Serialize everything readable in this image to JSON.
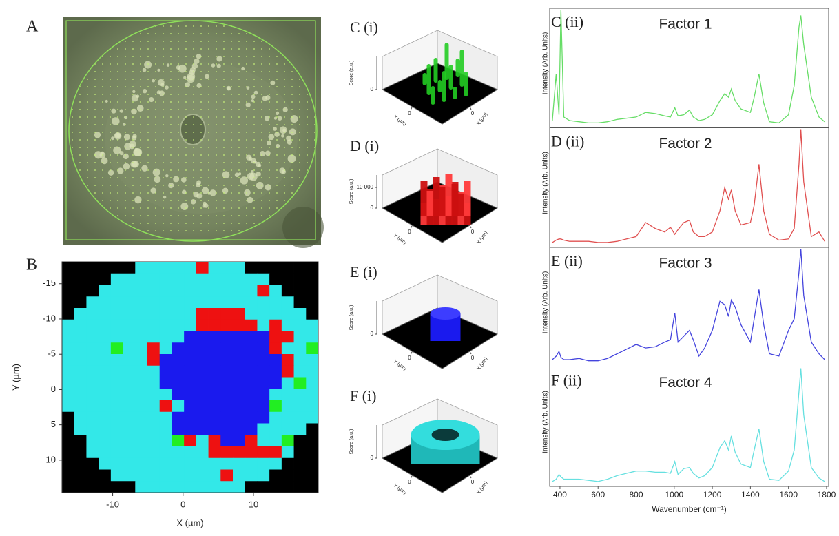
{
  "microscope": {
    "label": "A"
  },
  "surfaces": [
    {
      "label": "C (i)",
      "zlabel": "Score (a.u.)",
      "zticks": [
        0
      ],
      "ylabel": "Y (µm)",
      "yticks": [
        0
      ],
      "xlabel": "X (µm)",
      "xticks": [
        0
      ],
      "color": "#22cc22",
      "shape": "pillars"
    },
    {
      "label": "D (i)",
      "zlabel": "Score (a.u.)",
      "zticks": [
        0,
        {
          "value": 10000,
          "label": "10 000"
        }
      ],
      "zlim": [
        0,
        16000
      ],
      "ylabel": "Y (µm)",
      "yticks": [
        0
      ],
      "xlabel": "X (µm)",
      "xticks": [
        0
      ],
      "color": "#dd1111",
      "shape": "blob"
    },
    {
      "label": "E (i)",
      "zlabel": "Score (a.u.)",
      "zticks": [
        0
      ],
      "ylabel": "Y (µm)",
      "yticks": [
        0
      ],
      "xlabel": "X (µm)",
      "xticks": [
        0
      ],
      "color": "#1a1aee",
      "shape": "cylinder"
    },
    {
      "label": "F (i)",
      "zlabel": "Score (a.u.)",
      "zticks": [
        0
      ],
      "ylabel": "Y (µm)",
      "yticks": [
        0
      ],
      "xlabel": "X (µm)",
      "xticks": [
        0
      ],
      "color": "#33dddd",
      "shape": "ring"
    }
  ],
  "chart_data": [
    {
      "type": "heatmap",
      "label": "B",
      "xlabel": "X (µm)",
      "ylabel": "Y (µm)",
      "xlim": [
        -17.2,
        19.2
      ],
      "ylim": [
        -18.1,
        14.6
      ],
      "xticks": [
        -10,
        0,
        10
      ],
      "yticks": [
        -15,
        -10,
        -5,
        0,
        5,
        10
      ],
      "colors": [
        "#000000",
        "#22ee22",
        "#ee1111",
        "#1a1aee",
        "#33e8e8"
      ],
      "values": [
        [
          0,
          0,
          0,
          0,
          0,
          0,
          4,
          4,
          4,
          4,
          4,
          2,
          4,
          4,
          4,
          0,
          0,
          0,
          0,
          0,
          0
        ],
        [
          0,
          0,
          0,
          0,
          4,
          4,
          4,
          4,
          4,
          4,
          4,
          4,
          4,
          4,
          4,
          4,
          4,
          0,
          0,
          0,
          0
        ],
        [
          0,
          0,
          0,
          4,
          4,
          4,
          4,
          4,
          4,
          4,
          4,
          4,
          4,
          4,
          4,
          4,
          2,
          4,
          0,
          0,
          0
        ],
        [
          0,
          0,
          4,
          4,
          4,
          4,
          4,
          4,
          4,
          4,
          4,
          4,
          4,
          4,
          4,
          4,
          4,
          4,
          4,
          0,
          0
        ],
        [
          0,
          4,
          4,
          4,
          4,
          4,
          4,
          4,
          4,
          4,
          4,
          2,
          2,
          2,
          2,
          4,
          4,
          4,
          4,
          4,
          0
        ],
        [
          4,
          4,
          4,
          4,
          4,
          4,
          4,
          4,
          4,
          4,
          4,
          2,
          2,
          2,
          2,
          2,
          4,
          2,
          4,
          4,
          4
        ],
        [
          4,
          4,
          4,
          4,
          4,
          4,
          4,
          4,
          4,
          4,
          3,
          3,
          3,
          3,
          3,
          3,
          3,
          2,
          2,
          4,
          4
        ],
        [
          4,
          4,
          4,
          4,
          1,
          4,
          4,
          2,
          4,
          3,
          3,
          3,
          3,
          3,
          3,
          3,
          3,
          2,
          4,
          4,
          1
        ],
        [
          4,
          4,
          4,
          4,
          4,
          4,
          4,
          2,
          3,
          3,
          3,
          3,
          3,
          3,
          3,
          3,
          3,
          3,
          2,
          4,
          4
        ],
        [
          4,
          4,
          4,
          4,
          4,
          4,
          4,
          4,
          3,
          3,
          3,
          3,
          3,
          3,
          3,
          3,
          3,
          3,
          2,
          4,
          4
        ],
        [
          4,
          4,
          4,
          4,
          4,
          4,
          4,
          4,
          3,
          3,
          3,
          3,
          3,
          3,
          3,
          3,
          3,
          3,
          4,
          1,
          4
        ],
        [
          4,
          4,
          4,
          4,
          4,
          4,
          4,
          4,
          4,
          3,
          3,
          3,
          3,
          3,
          3,
          3,
          3,
          4,
          4,
          4,
          4
        ],
        [
          4,
          4,
          4,
          4,
          4,
          4,
          4,
          4,
          2,
          4,
          3,
          3,
          3,
          3,
          3,
          3,
          3,
          1,
          4,
          4,
          4
        ],
        [
          0,
          4,
          4,
          4,
          4,
          4,
          4,
          4,
          4,
          3,
          3,
          3,
          3,
          3,
          3,
          3,
          3,
          4,
          4,
          4,
          4
        ],
        [
          0,
          4,
          4,
          4,
          4,
          4,
          4,
          4,
          4,
          3,
          3,
          3,
          3,
          3,
          3,
          3,
          4,
          4,
          4,
          4,
          0
        ],
        [
          0,
          0,
          4,
          4,
          4,
          4,
          4,
          4,
          4,
          1,
          2,
          4,
          2,
          3,
          3,
          2,
          4,
          4,
          1,
          0,
          0
        ],
        [
          0,
          0,
          4,
          4,
          4,
          4,
          4,
          4,
          4,
          4,
          4,
          4,
          2,
          2,
          2,
          2,
          2,
          2,
          4,
          0,
          0
        ],
        [
          0,
          0,
          0,
          4,
          4,
          4,
          4,
          4,
          4,
          4,
          4,
          4,
          4,
          4,
          4,
          4,
          4,
          4,
          0,
          0,
          0
        ],
        [
          0,
          0,
          0,
          0,
          4,
          4,
          4,
          4,
          4,
          4,
          4,
          4,
          4,
          2,
          4,
          4,
          4,
          0,
          0,
          0,
          0
        ],
        [
          0,
          0,
          0,
          0,
          0,
          0,
          4,
          4,
          4,
          4,
          4,
          4,
          4,
          4,
          4,
          0,
          0,
          0,
          0,
          0,
          0
        ]
      ]
    },
    {
      "type": "line",
      "label": "C (ii)",
      "title": "Factor 1",
      "ylabel": "Intensity (Arb. Units)",
      "xlim": [
        346,
        1811
      ],
      "ylim": [
        0,
        100
      ],
      "x": [
        360,
        380,
        395,
        405,
        420,
        450,
        500,
        550,
        600,
        650,
        700,
        750,
        800,
        850,
        900,
        950,
        980,
        1003,
        1020,
        1050,
        1080,
        1100,
        1130,
        1160,
        1200,
        1240,
        1265,
        1285,
        1300,
        1320,
        1350,
        1400,
        1420,
        1445,
        1470,
        1500,
        1550,
        1600,
        1630,
        1655,
        1665,
        1680,
        1720,
        1760,
        1790
      ],
      "series": [
        {
          "color": "#66dd66",
          "values": [
            5,
            45,
            10,
            100,
            8,
            5,
            4,
            3,
            3,
            4,
            6,
            7,
            8,
            12,
            11,
            9,
            8,
            16,
            9,
            10,
            14,
            8,
            5,
            6,
            10,
            22,
            28,
            25,
            32,
            22,
            15,
            12,
            25,
            45,
            20,
            4,
            3,
            10,
            35,
            85,
            95,
            70,
            25,
            8,
            4
          ]
        }
      ]
    },
    {
      "type": "line",
      "label": "D (ii)",
      "title": "Factor 2",
      "ylabel": "Intensity (Arb. Units)",
      "xlim": [
        346,
        1811
      ],
      "ylim": [
        0,
        100
      ],
      "x": [
        360,
        380,
        395,
        405,
        420,
        450,
        500,
        550,
        600,
        650,
        700,
        750,
        800,
        850,
        900,
        950,
        980,
        1003,
        1020,
        1050,
        1080,
        1100,
        1130,
        1160,
        1200,
        1240,
        1265,
        1285,
        1300,
        1320,
        1350,
        1400,
        1420,
        1445,
        1470,
        1500,
        1550,
        1600,
        1630,
        1655,
        1665,
        1680,
        1720,
        1760,
        1790
      ],
      "series": [
        {
          "color": "#e05050",
          "values": [
            3,
            5,
            6,
            6,
            5,
            4,
            4,
            4,
            3,
            3,
            4,
            6,
            8,
            20,
            15,
            12,
            16,
            10,
            14,
            20,
            22,
            12,
            8,
            8,
            12,
            30,
            50,
            40,
            48,
            30,
            18,
            20,
            35,
            70,
            30,
            10,
            5,
            6,
            15,
            70,
            100,
            55,
            8,
            12,
            4
          ]
        }
      ]
    },
    {
      "type": "line",
      "label": "E (ii)",
      "title": "Factor 3",
      "ylabel": "Intensity (Arb. Units)",
      "xlim": [
        346,
        1811
      ],
      "ylim": [
        0,
        100
      ],
      "x": [
        360,
        380,
        395,
        405,
        420,
        450,
        500,
        550,
        600,
        650,
        700,
        750,
        800,
        850,
        900,
        950,
        980,
        1003,
        1020,
        1050,
        1080,
        1100,
        1130,
        1160,
        1200,
        1240,
        1265,
        1285,
        1300,
        1320,
        1350,
        1400,
        1420,
        1445,
        1470,
        1500,
        1550,
        1600,
        1630,
        1655,
        1665,
        1680,
        1720,
        1760,
        1790
      ],
      "series": [
        {
          "color": "#4444dd",
          "values": [
            5,
            8,
            12,
            7,
            5,
            5,
            6,
            4,
            4,
            6,
            10,
            14,
            18,
            15,
            16,
            20,
            22,
            45,
            20,
            25,
            30,
            22,
            8,
            15,
            30,
            55,
            52,
            42,
            56,
            50,
            35,
            20,
            40,
            65,
            35,
            10,
            8,
            30,
            40,
            80,
            100,
            60,
            20,
            10,
            5
          ]
        }
      ]
    },
    {
      "type": "line",
      "label": "F (ii)",
      "title": "Factor 4",
      "ylabel": "Intensity (Arb. Units)",
      "xlim": [
        346,
        1811
      ],
      "ylim": [
        0,
        100
      ],
      "xlabel": "Wavenumber (cm⁻¹)",
      "xticks": [
        400,
        600,
        800,
        1000,
        1200,
        1400,
        1600,
        1800
      ],
      "x": [
        360,
        380,
        395,
        405,
        420,
        450,
        500,
        550,
        600,
        650,
        700,
        750,
        800,
        850,
        900,
        950,
        980,
        1003,
        1020,
        1050,
        1080,
        1100,
        1130,
        1160,
        1200,
        1240,
        1265,
        1285,
        1300,
        1320,
        1350,
        1400,
        1420,
        1445,
        1470,
        1500,
        1550,
        1600,
        1630,
        1655,
        1665,
        1680,
        1720,
        1760,
        1790
      ],
      "series": [
        {
          "color": "#66e0e0",
          "values": [
            3,
            5,
            9,
            7,
            5,
            5,
            5,
            4,
            3,
            5,
            8,
            10,
            12,
            12,
            11,
            11,
            10,
            20,
            9,
            14,
            15,
            10,
            6,
            8,
            15,
            32,
            38,
            30,
            42,
            28,
            18,
            15,
            30,
            48,
            20,
            5,
            4,
            12,
            30,
            80,
            100,
            60,
            15,
            6,
            3
          ]
        }
      ]
    }
  ]
}
